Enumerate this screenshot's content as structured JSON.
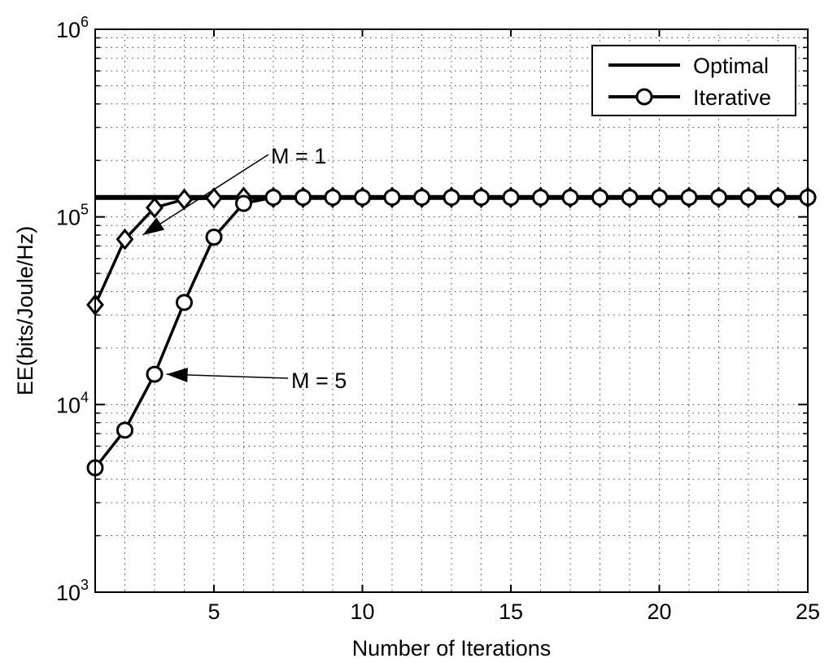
{
  "chart_data": {
    "type": "line",
    "xlabel": "Number of Iterations",
    "ylabel": "EE(bits/Joule/Hz)",
    "xlim": [
      1,
      25
    ],
    "ylim": [
      1000,
      1000000
    ],
    "yscale": "log",
    "grid": true,
    "xticks": [
      5,
      10,
      15,
      20,
      25
    ],
    "xtick_labels": [
      "5",
      "10",
      "15",
      "20",
      "25"
    ],
    "yticks": [
      1000,
      10000,
      100000,
      1000000
    ],
    "ytick_labels": [
      {
        "base": "10",
        "exp": "3"
      },
      {
        "base": "10",
        "exp": "4"
      },
      {
        "base": "10",
        "exp": "5"
      },
      {
        "base": "10",
        "exp": "6"
      }
    ],
    "legend": {
      "placement": "top-right",
      "entries": [
        {
          "label": "Optimal",
          "marker": "none"
        },
        {
          "label": "Iterative",
          "marker": "circle"
        }
      ]
    },
    "optimal_value": 127000,
    "series": [
      {
        "marker": "diamond",
        "x": [
          1,
          2,
          3,
          4,
          5,
          6,
          7,
          8,
          9,
          10,
          11,
          12,
          13,
          14,
          15,
          16,
          17,
          18,
          19,
          20,
          21,
          22,
          23,
          24,
          25
        ],
        "y": [
          34000,
          76000,
          112000,
          124000,
          126000,
          127000,
          127000,
          127000,
          127000,
          127000,
          127000,
          127000,
          127000,
          127000,
          127000,
          127000,
          127000,
          127000,
          127000,
          127000,
          127000,
          127000,
          127000,
          127000,
          127000
        ]
      },
      {
        "marker": "circle",
        "x": [
          1,
          2,
          3,
          4,
          5,
          6,
          7,
          8,
          9,
          10,
          11,
          12,
          13,
          14,
          15,
          16,
          17,
          18,
          19,
          20,
          21,
          22,
          23,
          24,
          25
        ],
        "y": [
          4600,
          7300,
          14500,
          35000,
          78000,
          118000,
          127000,
          127000,
          127000,
          127000,
          127000,
          127000,
          127000,
          127000,
          127000,
          127000,
          127000,
          127000,
          127000,
          127000,
          127000,
          127000,
          127000,
          127000,
          127000
        ]
      }
    ],
    "annotations": [
      {
        "text": "M = 1",
        "arrow_to": {
          "x": 2.6,
          "y": 80000
        }
      },
      {
        "text": "M = 5",
        "arrow_to": {
          "x": 3.4,
          "y": 14500
        }
      }
    ]
  }
}
